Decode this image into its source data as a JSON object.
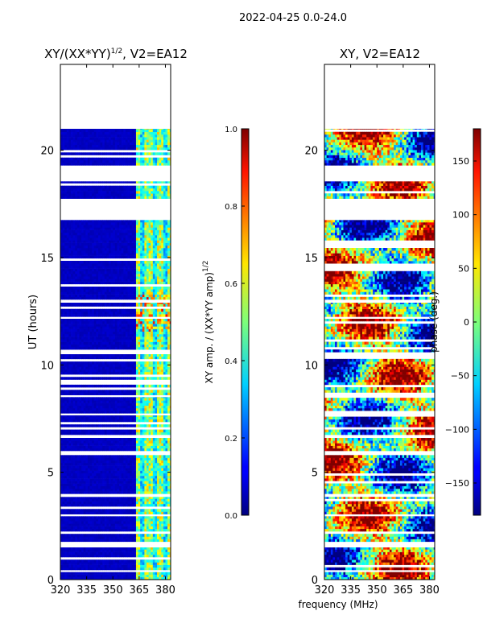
{
  "figure": {
    "suptitle": "2022-04-25 0.0-24.0",
    "shared_xlabel": "frequency (MHz)"
  },
  "chart_data": [
    {
      "type": "heatmap",
      "title_main": "XY/(XX*YY)",
      "title_sup": "1/2",
      "title_rest": ", V2=EA12",
      "xlabel": "",
      "ylabel": "UT (hours)",
      "xlim": [
        320,
        383
      ],
      "ylim": [
        0,
        24
      ],
      "xticks": [
        320,
        335,
        350,
        365,
        380
      ],
      "yticks": [
        0,
        5,
        10,
        15,
        20
      ],
      "colormap": "jet",
      "data_mask": {
        "bands_hours": [
          [
            0.0,
            0.35
          ],
          [
            0.45,
            1.5
          ],
          [
            1.65,
            2.95
          ],
          [
            3.05,
            3.85
          ],
          [
            4.0,
            5.8
          ],
          [
            6.0,
            6.6
          ],
          [
            6.75,
            7.65
          ],
          [
            7.75,
            8.5
          ],
          [
            8.6,
            10.5
          ],
          [
            10.6,
            12.15
          ],
          [
            12.25,
            12.9
          ],
          [
            13.05,
            16.75
          ],
          [
            17.75,
            18.55
          ],
          [
            19.3,
            21.0
          ]
        ],
        "hot_channel_range_mhz": [
          363,
          383
        ],
        "description": "Low amplitude (dark blue) below 363 MHz; structured amplitudes 363-383 MHz"
      },
      "colorbar": {
        "label_main": "XY amp. / (XX*YY amp)",
        "label_sup": "1/2",
        "range": [
          0.0,
          1.0
        ],
        "ticks": [
          "0.0",
          "0.2",
          "0.4",
          "0.6",
          "0.8",
          "1.0"
        ]
      }
    },
    {
      "type": "heatmap",
      "title": "XY, V2=EA12",
      "xlabel": "",
      "ylabel": "",
      "xlim": [
        320,
        383
      ],
      "ylim": [
        0,
        24
      ],
      "xticks": [
        320,
        335,
        350,
        365,
        380
      ],
      "yticks": [
        0,
        5,
        10,
        15,
        20
      ],
      "colormap": "jet",
      "data_mask": {
        "bands_hours": [
          [
            0.0,
            0.35
          ],
          [
            0.45,
            1.5
          ],
          [
            1.65,
            2.95
          ],
          [
            3.05,
            3.85
          ],
          [
            4.0,
            5.8
          ],
          [
            6.0,
            6.6
          ],
          [
            6.75,
            7.65
          ],
          [
            7.75,
            8.5
          ],
          [
            8.6,
            10.5
          ],
          [
            10.6,
            12.15
          ],
          [
            12.25,
            12.9
          ],
          [
            13.05,
            16.75
          ],
          [
            17.75,
            18.55
          ],
          [
            19.3,
            21.0
          ]
        ],
        "description": "Phase values spread over full range with noisy structure"
      },
      "colorbar": {
        "label": "phase (deg.)",
        "range": [
          -180,
          180
        ],
        "ticks": [
          "−150",
          "−100",
          "−50",
          "0",
          "50",
          "100",
          "150"
        ],
        "tick_values": [
          -150,
          -100,
          -50,
          0,
          50,
          100,
          150
        ]
      }
    }
  ]
}
